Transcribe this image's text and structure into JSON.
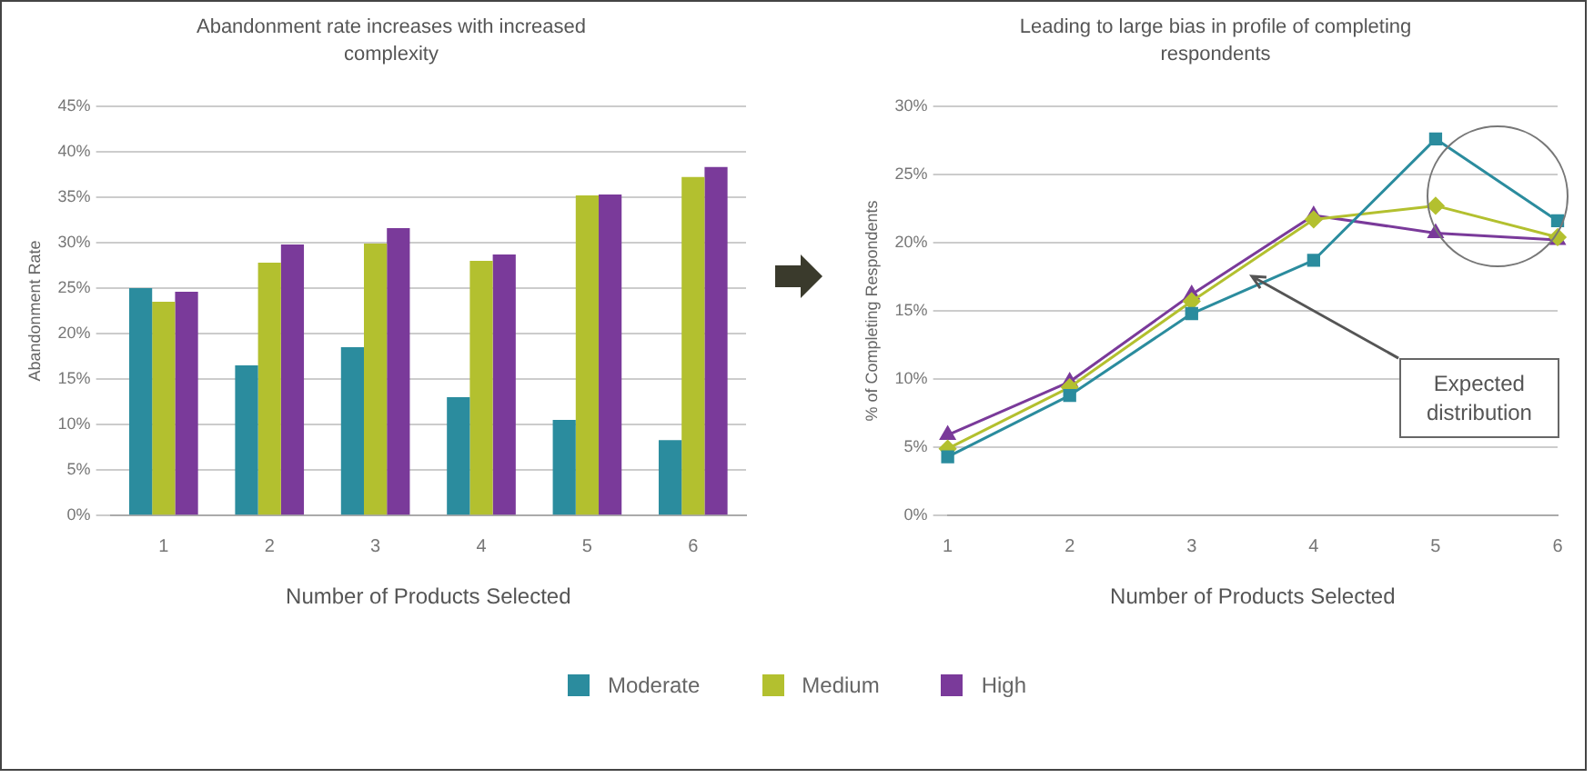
{
  "chart_data": [
    {
      "type": "bar",
      "title": "Abandonment rate increases with increased complexity",
      "xlabel": "Number of Products Selected",
      "ylabel": "Abandonment Rate",
      "categories": [
        "1",
        "2",
        "3",
        "4",
        "5",
        "6"
      ],
      "series": [
        {
          "name": "Moderate",
          "color": "#2b8c9e",
          "values": [
            25,
            16.5,
            18.5,
            13,
            10.5,
            8.3
          ]
        },
        {
          "name": "Medium",
          "color": "#b3c02f",
          "values": [
            23.5,
            27.8,
            29.9,
            28,
            35.2,
            37.2
          ]
        },
        {
          "name": "High",
          "color": "#7a3a9a",
          "values": [
            24.6,
            29.8,
            31.6,
            28.7,
            35.3,
            38.3
          ]
        }
      ],
      "ylim": [
        0,
        45
      ],
      "yticks": [
        {
          "value": 0,
          "label": "0%"
        },
        {
          "value": 5,
          "label": "5%"
        },
        {
          "value": 10,
          "label": "10%"
        },
        {
          "value": 15,
          "label": "15%"
        },
        {
          "value": 20,
          "label": "20%"
        },
        {
          "value": 25,
          "label": "25%"
        },
        {
          "value": 30,
          "label": "30%"
        },
        {
          "value": 35,
          "label": "35%"
        },
        {
          "value": 40,
          "label": "40%"
        },
        {
          "value": 45,
          "label": "45%"
        }
      ],
      "grid": "y",
      "legend": "bottom"
    },
    {
      "type": "line",
      "title": "Leading to large bias in profile of completing respondents",
      "xlabel": "Number of Products Selected",
      "ylabel": "% of Completing Respondents",
      "categories": [
        "1",
        "2",
        "3",
        "4",
        "5",
        "6"
      ],
      "series": [
        {
          "name": "Moderate",
          "color": "#2b8c9e",
          "marker": "square",
          "values": [
            4.3,
            8.8,
            14.8,
            18.7,
            27.6,
            21.6
          ]
        },
        {
          "name": "Medium",
          "color": "#b3c02f",
          "marker": "diamond",
          "values": [
            4.9,
            9.4,
            15.7,
            21.7,
            22.7,
            20.4
          ]
        },
        {
          "name": "High",
          "color": "#7a3a9a",
          "marker": "triangle",
          "values": [
            5.9,
            9.8,
            16.2,
            22,
            20.7,
            20.2
          ]
        }
      ],
      "ylim": [
        0,
        30
      ],
      "yticks": [
        {
          "value": 0,
          "label": "0%"
        },
        {
          "value": 5,
          "label": "5%"
        },
        {
          "value": 10,
          "label": "10%"
        },
        {
          "value": 15,
          "label": "15%"
        },
        {
          "value": 20,
          "label": "20%"
        },
        {
          "value": 25,
          "label": "25%"
        },
        {
          "value": 30,
          "label": "30%"
        }
      ],
      "grid": "y",
      "legend": "bottom",
      "annotations": [
        "Expected distribution"
      ]
    }
  ]
}
